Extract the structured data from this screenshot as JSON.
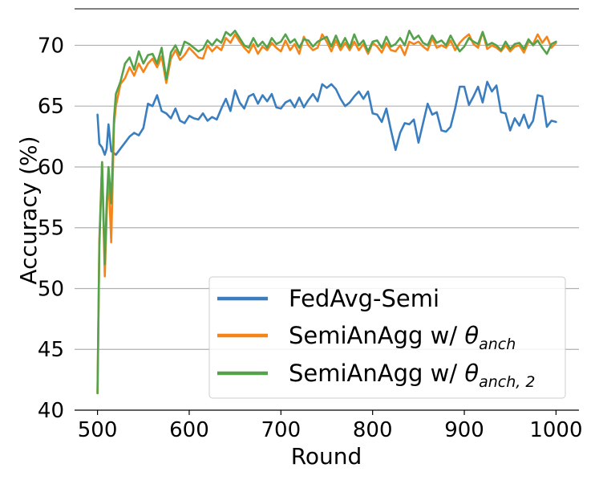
{
  "chart_data": {
    "type": "line",
    "title": "",
    "xlabel": "Round",
    "ylabel": "Accuracy (%)",
    "xlim": [
      475,
      1025
    ],
    "ylim": [
      40,
      73
    ],
    "xticks": [
      500,
      600,
      700,
      800,
      900,
      1000
    ],
    "xtick_labels": [
      "500",
      "600",
      "700",
      "800",
      "900",
      "1000"
    ],
    "yticks": [
      40,
      45,
      50,
      55,
      60,
      65,
      70
    ],
    "ytick_labels": [
      "40",
      "45",
      "50",
      "55",
      "60",
      "65",
      "70"
    ],
    "grid": "horizontal",
    "legend_position": "lower-right",
    "series": [
      {
        "name": "FedAvg-Semi",
        "color": "#3a7ebf",
        "x": [
          500,
          502,
          505,
          508,
          510,
          512,
          515,
          520,
          525,
          530,
          535,
          540,
          545,
          550,
          555,
          560,
          565,
          570,
          575,
          580,
          585,
          590,
          595,
          600,
          605,
          610,
          615,
          620,
          625,
          630,
          635,
          640,
          645,
          650,
          655,
          660,
          665,
          670,
          675,
          680,
          685,
          690,
          695,
          700,
          705,
          710,
          715,
          720,
          725,
          730,
          735,
          740,
          745,
          750,
          755,
          760,
          765,
          770,
          775,
          780,
          785,
          790,
          795,
          800,
          805,
          810,
          815,
          820,
          825,
          830,
          835,
          840,
          845,
          850,
          855,
          860,
          865,
          870,
          875,
          880,
          885,
          890,
          895,
          900,
          905,
          910,
          915,
          920,
          925,
          930,
          935,
          940,
          945,
          950,
          955,
          960,
          965,
          970,
          975,
          980,
          985,
          990,
          995,
          1000
        ],
        "values": [
          64.3,
          61.9,
          61.6,
          61.0,
          61.5,
          63.5,
          61.3,
          61.0,
          61.5,
          62.0,
          62.5,
          62.8,
          62.6,
          63.2,
          65.2,
          65.0,
          65.9,
          64.6,
          64.4,
          64.0,
          64.8,
          63.8,
          63.6,
          64.2,
          64.0,
          63.9,
          64.4,
          63.8,
          64.1,
          63.9,
          64.8,
          65.6,
          64.6,
          66.3,
          65.3,
          64.8,
          65.8,
          66.0,
          65.2,
          65.9,
          65.4,
          66.0,
          64.9,
          64.8,
          65.3,
          65.5,
          64.9,
          65.7,
          64.9,
          65.5,
          66.0,
          65.4,
          66.8,
          66.5,
          66.8,
          66.4,
          65.6,
          65.0,
          65.3,
          65.8,
          66.2,
          65.6,
          66.2,
          64.4,
          64.3,
          63.7,
          64.8,
          63.0,
          61.4,
          62.8,
          63.6,
          63.5,
          63.9,
          62.0,
          63.6,
          65.2,
          64.3,
          64.5,
          63.0,
          62.9,
          63.3,
          64.8,
          66.6,
          66.6,
          65.1,
          65.8,
          66.6,
          65.3,
          67.0,
          66.2,
          66.7,
          64.5,
          64.4,
          63.0,
          64.0,
          63.4,
          64.3,
          63.2,
          63.8,
          65.9,
          65.8,
          63.3,
          63.8,
          63.7
        ]
      },
      {
        "name": "SemiAnAgg w/ θ_anch",
        "color": "#f58518",
        "x": [
          500,
          502,
          505,
          508,
          510,
          512,
          515,
          518,
          520,
          525,
          530,
          535,
          540,
          545,
          550,
          555,
          560,
          565,
          570,
          575,
          580,
          585,
          590,
          595,
          600,
          605,
          610,
          615,
          620,
          625,
          630,
          635,
          640,
          645,
          650,
          655,
          660,
          665,
          670,
          675,
          680,
          685,
          690,
          695,
          700,
          705,
          710,
          715,
          720,
          725,
          730,
          735,
          740,
          745,
          750,
          755,
          760,
          765,
          770,
          775,
          780,
          785,
          790,
          795,
          800,
          805,
          810,
          815,
          820,
          825,
          830,
          835,
          840,
          845,
          850,
          855,
          860,
          865,
          870,
          875,
          880,
          885,
          890,
          895,
          900,
          905,
          910,
          915,
          920,
          925,
          930,
          935,
          940,
          945,
          950,
          955,
          960,
          965,
          970,
          975,
          980,
          985,
          990,
          995,
          1000
        ],
        "values": [
          41.4,
          54.0,
          60.4,
          51.0,
          56.0,
          59.5,
          53.8,
          63.5,
          65.0,
          66.8,
          67.3,
          68.2,
          67.5,
          68.5,
          67.8,
          68.5,
          68.9,
          68.2,
          69.1,
          66.9,
          68.9,
          69.6,
          68.8,
          69.2,
          69.8,
          69.4,
          69.0,
          68.9,
          70.0,
          69.5,
          69.9,
          69.6,
          70.6,
          70.2,
          70.9,
          70.3,
          69.8,
          69.4,
          70.1,
          69.3,
          69.9,
          69.6,
          70.2,
          69.8,
          69.5,
          70.4,
          69.6,
          70.1,
          69.3,
          70.7,
          70.0,
          69.6,
          69.8,
          70.9,
          70.3,
          69.5,
          70.4,
          69.6,
          70.2,
          69.6,
          70.3,
          69.6,
          70.1,
          69.3,
          70.2,
          69.9,
          69.4,
          70.2,
          69.6,
          69.5,
          70.0,
          69.2,
          70.3,
          70.1,
          70.3,
          69.9,
          69.6,
          70.6,
          69.8,
          70.0,
          69.8,
          70.4,
          69.6,
          70.2,
          70.6,
          70.9,
          70.1,
          69.8,
          71.1,
          69.7,
          70.0,
          69.8,
          69.5,
          70.0,
          69.5,
          69.9,
          70.0,
          69.4,
          70.3,
          70.1,
          70.9,
          70.2,
          70.7,
          69.8,
          70.2
        ]
      },
      {
        "name": "SemiAnAgg w/ θ_anch,2",
        "color": "#54a24b",
        "x": [
          500,
          502,
          505,
          508,
          510,
          512,
          515,
          518,
          520,
          525,
          530,
          535,
          540,
          545,
          550,
          555,
          560,
          565,
          570,
          575,
          580,
          585,
          590,
          595,
          600,
          605,
          610,
          615,
          620,
          625,
          630,
          635,
          640,
          645,
          650,
          655,
          660,
          665,
          670,
          675,
          680,
          685,
          690,
          695,
          700,
          705,
          710,
          715,
          720,
          725,
          730,
          735,
          740,
          745,
          750,
          755,
          760,
          765,
          770,
          775,
          780,
          785,
          790,
          795,
          800,
          805,
          810,
          815,
          820,
          825,
          830,
          835,
          840,
          845,
          850,
          855,
          860,
          865,
          870,
          875,
          880,
          885,
          890,
          895,
          900,
          905,
          910,
          915,
          920,
          925,
          930,
          935,
          940,
          945,
          950,
          955,
          960,
          965,
          970,
          975,
          980,
          985,
          990,
          995,
          1000
        ],
        "values": [
          41.4,
          53.5,
          60.4,
          52.0,
          57.0,
          60.0,
          57.0,
          64.0,
          66.0,
          67.0,
          68.5,
          69.0,
          68.0,
          69.5,
          68.5,
          69.2,
          69.3,
          68.5,
          69.8,
          67.2,
          69.4,
          70.0,
          69.2,
          70.3,
          70.1,
          69.8,
          69.5,
          69.7,
          70.4,
          70.0,
          70.5,
          70.2,
          71.1,
          70.8,
          71.2,
          70.6,
          70.0,
          69.8,
          70.6,
          69.9,
          70.3,
          69.8,
          70.6,
          70.1,
          70.3,
          70.9,
          70.2,
          70.5,
          69.8,
          70.5,
          70.4,
          69.9,
          70.3,
          70.5,
          70.7,
          69.9,
          70.8,
          69.9,
          70.6,
          69.8,
          70.9,
          70.0,
          70.4,
          69.5,
          70.3,
          70.4,
          69.8,
          70.7,
          69.9,
          70.1,
          70.6,
          70.0,
          71.2,
          70.5,
          70.8,
          70.2,
          70.0,
          70.8,
          70.2,
          70.4,
          70.0,
          70.8,
          70.1,
          69.5,
          69.9,
          70.6,
          70.3,
          70.1,
          71.1,
          70.0,
          70.2,
          70.0,
          69.6,
          70.3,
          69.7,
          70.1,
          70.2,
          69.7,
          70.5,
          70.0,
          70.4,
          69.8,
          69.3,
          70.1,
          70.3
        ]
      }
    ]
  },
  "legend": {
    "items": [
      {
        "label_main": "FedAvg-Semi",
        "label_theta": "",
        "label_sub": "",
        "color": "#3a7ebf"
      },
      {
        "label_main": "SemiAnAgg w/ ",
        "label_theta": "θ",
        "label_sub": "anch",
        "color": "#f58518"
      },
      {
        "label_main": "SemiAnAgg w/ ",
        "label_theta": "θ",
        "label_sub": "anch, 2",
        "color": "#54a24b"
      }
    ]
  }
}
